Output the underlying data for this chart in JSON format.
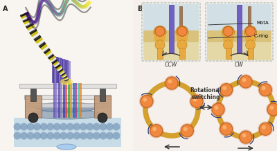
{
  "fig_width": 4.0,
  "fig_height": 2.18,
  "dpi": 100,
  "bg_color": "#f5f0eb",
  "label_A": "A",
  "label_B": "B",
  "ring_color": "#D4A030",
  "ring_linewidth": 5.0,
  "ball_face": "#F08840",
  "ball_edge": "#C06020",
  "arrow_dark": "#2B3A7A",
  "arrow_gray": "#444444",
  "ccw_label": "CCW",
  "cw_label": "CW",
  "rot_switch": "Rotational\nswitching",
  "motA_label": "MotA",
  "cring_label": "C-ring",
  "purple_shaft": "#7060B8",
  "brown_shaft": "#A07858",
  "orange_motA": "#E8A840",
  "orange_ball": "#F08840",
  "membrane_tan": "#D4B870",
  "membrane_green": "#B8C8A0",
  "sky_blue": "#B0C8D8",
  "num_balls_ccw": 5,
  "num_balls_cw": 8
}
